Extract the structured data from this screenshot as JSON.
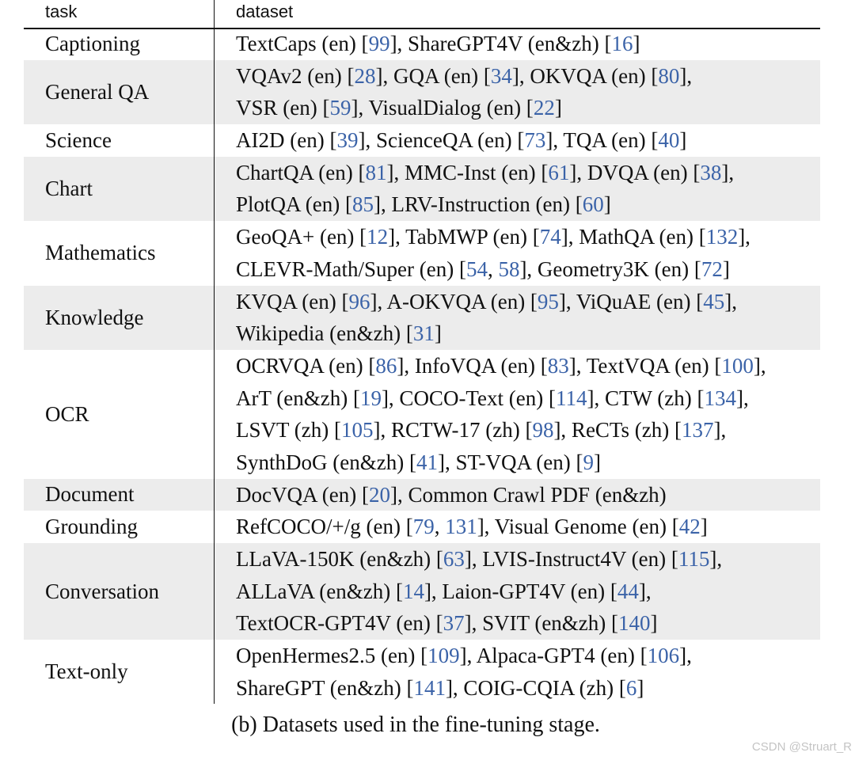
{
  "table": {
    "headers": {
      "task": "task",
      "dataset": "dataset"
    },
    "rows": [
      {
        "task": "Captioning",
        "lines": [
          [
            {
              "t": "TextCaps (en) ["
            },
            {
              "r": "99"
            },
            {
              "t": "], ShareGPT4V (en&zh) ["
            },
            {
              "r": "16"
            },
            {
              "t": "]"
            }
          ]
        ]
      },
      {
        "task": "General QA",
        "lines": [
          [
            {
              "t": "VQAv2 (en) ["
            },
            {
              "r": "28"
            },
            {
              "t": "], GQA (en) ["
            },
            {
              "r": "34"
            },
            {
              "t": "], OKVQA (en) ["
            },
            {
              "r": "80"
            },
            {
              "t": "],"
            }
          ],
          [
            {
              "t": "VSR (en) ["
            },
            {
              "r": "59"
            },
            {
              "t": "], VisualDialog (en) ["
            },
            {
              "r": "22"
            },
            {
              "t": "]"
            }
          ]
        ]
      },
      {
        "task": "Science",
        "lines": [
          [
            {
              "t": "AI2D (en) ["
            },
            {
              "r": "39"
            },
            {
              "t": "], ScienceQA (en) ["
            },
            {
              "r": "73"
            },
            {
              "t": "], TQA (en) ["
            },
            {
              "r": "40"
            },
            {
              "t": "]"
            }
          ]
        ]
      },
      {
        "task": "Chart",
        "lines": [
          [
            {
              "t": "ChartQA (en) ["
            },
            {
              "r": "81"
            },
            {
              "t": "], MMC-Inst (en) ["
            },
            {
              "r": "61"
            },
            {
              "t": "], DVQA (en) ["
            },
            {
              "r": "38"
            },
            {
              "t": "],"
            }
          ],
          [
            {
              "t": "PlotQA (en) ["
            },
            {
              "r": "85"
            },
            {
              "t": "], LRV-Instruction (en) ["
            },
            {
              "r": "60"
            },
            {
              "t": "]"
            }
          ]
        ]
      },
      {
        "task": "Mathematics",
        "lines": [
          [
            {
              "t": "GeoQA+ (en) ["
            },
            {
              "r": "12"
            },
            {
              "t": "], TabMWP (en) ["
            },
            {
              "r": "74"
            },
            {
              "t": "], MathQA (en) ["
            },
            {
              "r": "132"
            },
            {
              "t": "],"
            }
          ],
          [
            {
              "t": "CLEVR-Math/Super (en) ["
            },
            {
              "r": "54"
            },
            {
              "t": ", "
            },
            {
              "r": "58"
            },
            {
              "t": "], Geometry3K (en) ["
            },
            {
              "r": "72"
            },
            {
              "t": "]"
            }
          ]
        ]
      },
      {
        "task": "Knowledge",
        "lines": [
          [
            {
              "t": "KVQA (en) ["
            },
            {
              "r": "96"
            },
            {
              "t": "], A-OKVQA (en) ["
            },
            {
              "r": "95"
            },
            {
              "t": "], ViQuAE (en) ["
            },
            {
              "r": "45"
            },
            {
              "t": "],"
            }
          ],
          [
            {
              "t": "Wikipedia (en&zh) ["
            },
            {
              "r": "31"
            },
            {
              "t": "]"
            }
          ]
        ]
      },
      {
        "task": "OCR",
        "lines": [
          [
            {
              "t": "OCRVQA (en) ["
            },
            {
              "r": "86"
            },
            {
              "t": "], InfoVQA (en) ["
            },
            {
              "r": "83"
            },
            {
              "t": "], TextVQA (en) ["
            },
            {
              "r": "100"
            },
            {
              "t": "],"
            }
          ],
          [
            {
              "t": "ArT (en&zh) ["
            },
            {
              "r": "19"
            },
            {
              "t": "], COCO-Text (en) ["
            },
            {
              "r": "114"
            },
            {
              "t": "], CTW (zh) ["
            },
            {
              "r": "134"
            },
            {
              "t": "],"
            }
          ],
          [
            {
              "t": "LSVT (zh) ["
            },
            {
              "r": "105"
            },
            {
              "t": "], RCTW-17 (zh) ["
            },
            {
              "r": "98"
            },
            {
              "t": "], ReCTs (zh) ["
            },
            {
              "r": "137"
            },
            {
              "t": "],"
            }
          ],
          [
            {
              "t": "SynthDoG (en&zh) ["
            },
            {
              "r": "41"
            },
            {
              "t": "], ST-VQA (en) ["
            },
            {
              "r": "9"
            },
            {
              "t": "]"
            }
          ]
        ]
      },
      {
        "task": "Document",
        "lines": [
          [
            {
              "t": "DocVQA (en) ["
            },
            {
              "r": "20"
            },
            {
              "t": "], Common Crawl PDF (en&zh)"
            }
          ]
        ]
      },
      {
        "task": "Grounding",
        "lines": [
          [
            {
              "t": "RefCOCO/+/g (en) ["
            },
            {
              "r": "79"
            },
            {
              "t": ", "
            },
            {
              "r": "131"
            },
            {
              "t": "], Visual Genome (en) ["
            },
            {
              "r": "42"
            },
            {
              "t": "]"
            }
          ]
        ]
      },
      {
        "task": "Conversation",
        "lines": [
          [
            {
              "t": "LLaVA-150K (en&zh) ["
            },
            {
              "r": "63"
            },
            {
              "t": "], LVIS-Instruct4V (en) ["
            },
            {
              "r": "115"
            },
            {
              "t": "],"
            }
          ],
          [
            {
              "t": "ALLaVA (en&zh) ["
            },
            {
              "r": "14"
            },
            {
              "t": "], Laion-GPT4V (en) ["
            },
            {
              "r": "44"
            },
            {
              "t": "],"
            }
          ],
          [
            {
              "t": "TextOCR-GPT4V (en) ["
            },
            {
              "r": "37"
            },
            {
              "t": "], SVIT (en&zh) ["
            },
            {
              "r": "140"
            },
            {
              "t": "]"
            }
          ]
        ]
      },
      {
        "task": "Text-only",
        "lines": [
          [
            {
              "t": "OpenHermes2.5 (en) ["
            },
            {
              "r": "109"
            },
            {
              "t": "], Alpaca-GPT4 (en) ["
            },
            {
              "r": "106"
            },
            {
              "t": "],"
            }
          ],
          [
            {
              "t": "ShareGPT (en&zh) ["
            },
            {
              "r": "141"
            },
            {
              "t": "], COIG-CQIA (zh) ["
            },
            {
              "r": "6"
            },
            {
              "t": "]"
            }
          ]
        ]
      }
    ]
  },
  "caption": "(b) Datasets used in the fine-tuning stage.",
  "watermark": "CSDN @Struart_R",
  "colors": {
    "citation": "#3b63a8",
    "row_shade": "#ececec"
  }
}
